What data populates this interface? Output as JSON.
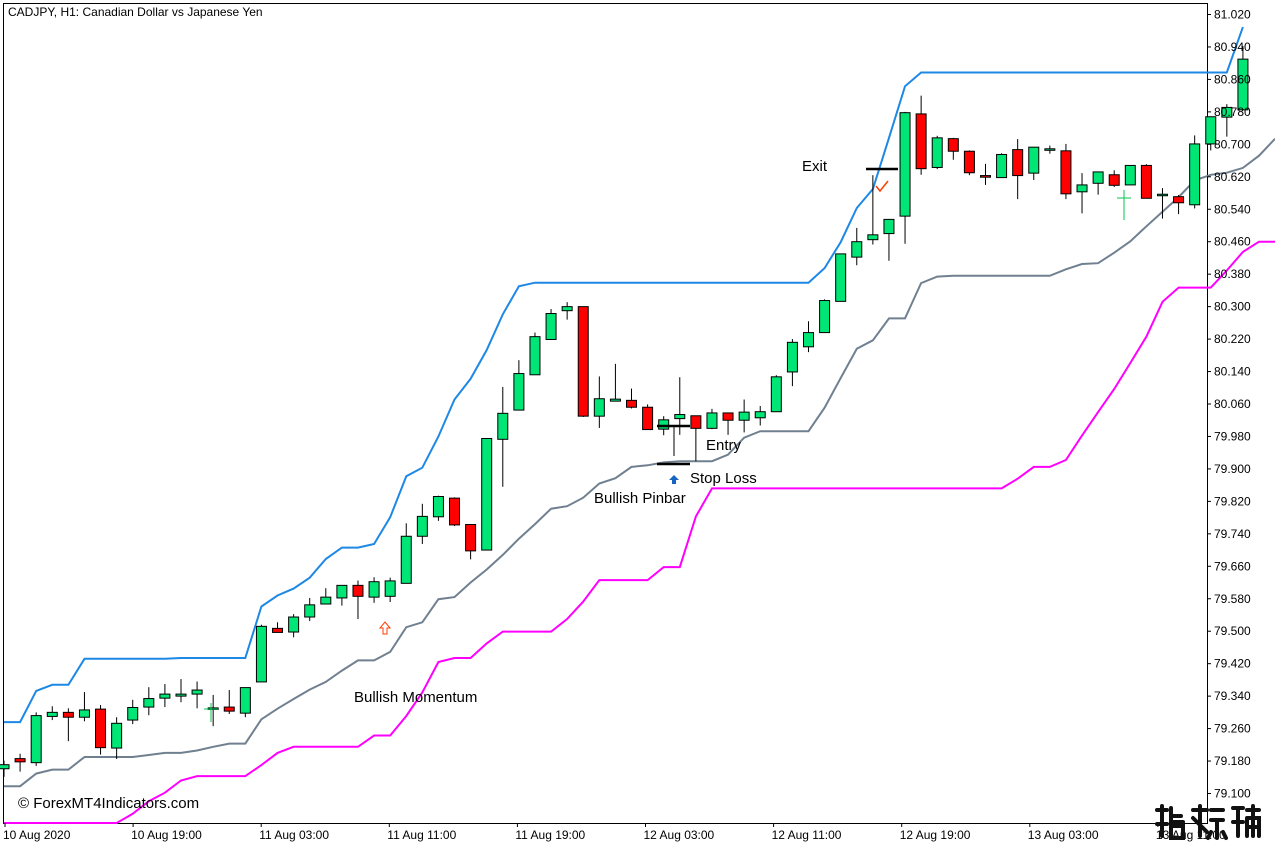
{
  "header": {
    "symbol_label": "CADJPY, H1:  Canadian Dollar vs Japanese Yen"
  },
  "watermark": {
    "text": "© ForexMT4Indicators.com",
    "logo_text": "指标铺"
  },
  "annotations": {
    "exit": "Exit",
    "entry": "Entry",
    "stop_loss": "Stop Loss",
    "bullish_pinbar": "Bullish Pinbar",
    "bullish_momentum": "Bullish Momentum"
  },
  "colors": {
    "bull_candle": "#00e676",
    "bear_candle": "#ff0000",
    "upper_band": "#1e88e5",
    "middle_band": "#708090",
    "lower_band": "#ff00ff",
    "grid_text": "#000000"
  },
  "chart_data": {
    "type": "candlestick",
    "title": "CADJPY, H1:  Canadian Dollar vs Japanese Yen",
    "ylim": [
      79.05,
      81.05
    ],
    "y_ticks": [
      "81.020",
      "80.940",
      "80.860",
      "80.780",
      "80.700",
      "80.620",
      "80.540",
      "80.460",
      "80.380",
      "80.300",
      "80.220",
      "80.140",
      "80.060",
      "79.980",
      "79.900",
      "79.820",
      "79.740",
      "79.660",
      "79.580",
      "79.500",
      "79.420",
      "79.340",
      "79.260",
      "79.180",
      "79.100"
    ],
    "x_ticks": [
      "10 Aug 2020",
      "10 Aug 19:00",
      "11 Aug 03:00",
      "11 Aug 11:00",
      "11 Aug 19:00",
      "12 Aug 03:00",
      "12 Aug 11:00",
      "12 Aug 19:00",
      "13 Aug 03:00",
      "13 Aug 11:00"
    ],
    "grid": false,
    "candles": [
      {
        "o": 79.161,
        "h": 79.181,
        "l": 79.141,
        "c": 79.171
      },
      {
        "o": 79.186,
        "h": 79.198,
        "l": 79.154,
        "c": 79.178
      },
      {
        "o": 79.176,
        "h": 79.3,
        "l": 79.168,
        "c": 79.292
      },
      {
        "o": 79.29,
        "h": 79.315,
        "l": 79.281,
        "c": 79.3
      },
      {
        "o": 79.3,
        "h": 79.31,
        "l": 79.229,
        "c": 79.288
      },
      {
        "o": 79.288,
        "h": 79.35,
        "l": 79.278,
        "c": 79.306
      },
      {
        "o": 79.308,
        "h": 79.318,
        "l": 79.196,
        "c": 79.213
      },
      {
        "o": 79.212,
        "h": 79.288,
        "l": 79.185,
        "c": 79.273
      },
      {
        "o": 79.281,
        "h": 79.331,
        "l": 79.271,
        "c": 79.312
      },
      {
        "o": 79.313,
        "h": 79.362,
        "l": 79.293,
        "c": 79.334
      },
      {
        "o": 79.335,
        "h": 79.37,
        "l": 79.313,
        "c": 79.345
      },
      {
        "o": 79.34,
        "h": 79.382,
        "l": 79.325,
        "c": 79.345
      },
      {
        "o": 79.345,
        "h": 79.376,
        "l": 79.31,
        "c": 79.355
      },
      {
        "o": 79.311,
        "h": 79.343,
        "l": 79.266,
        "c": 79.311
      },
      {
        "o": 79.313,
        "h": 79.355,
        "l": 79.296,
        "c": 79.303
      },
      {
        "o": 79.298,
        "h": 79.361,
        "l": 79.288,
        "c": 79.361
      },
      {
        "o": 79.375,
        "h": 79.516,
        "l": 79.375,
        "c": 79.512
      },
      {
        "o": 79.507,
        "h": 79.522,
        "l": 79.497,
        "c": 79.497
      },
      {
        "o": 79.498,
        "h": 79.542,
        "l": 79.485,
        "c": 79.535
      },
      {
        "o": 79.535,
        "h": 79.582,
        "l": 79.525,
        "c": 79.565
      },
      {
        "o": 79.567,
        "h": 79.606,
        "l": 79.567,
        "c": 79.584
      },
      {
        "o": 79.582,
        "h": 79.613,
        "l": 79.563,
        "c": 79.613
      },
      {
        "o": 79.613,
        "h": 79.625,
        "l": 79.53,
        "c": 79.586
      },
      {
        "o": 79.584,
        "h": 79.633,
        "l": 79.57,
        "c": 79.622
      },
      {
        "o": 79.586,
        "h": 79.632,
        "l": 79.572,
        "c": 79.624
      },
      {
        "o": 79.618,
        "h": 79.766,
        "l": 79.618,
        "c": 79.734
      },
      {
        "o": 79.734,
        "h": 79.814,
        "l": 79.715,
        "c": 79.783
      },
      {
        "o": 79.782,
        "h": 79.834,
        "l": 79.772,
        "c": 79.832
      },
      {
        "o": 79.828,
        "h": 79.83,
        "l": 79.759,
        "c": 79.762
      },
      {
        "o": 79.763,
        "h": 79.761,
        "l": 79.677,
        "c": 79.698
      },
      {
        "o": 79.7,
        "h": 79.975,
        "l": 79.7,
        "c": 79.975
      },
      {
        "o": 79.973,
        "h": 80.102,
        "l": 79.856,
        "c": 80.037
      },
      {
        "o": 80.045,
        "h": 80.168,
        "l": 80.045,
        "c": 80.135
      },
      {
        "o": 80.132,
        "h": 80.236,
        "l": 80.132,
        "c": 80.226
      },
      {
        "o": 80.219,
        "h": 80.294,
        "l": 80.219,
        "c": 80.283
      },
      {
        "o": 80.29,
        "h": 80.311,
        "l": 80.268,
        "c": 80.3
      },
      {
        "o": 80.3,
        "h": 80.3,
        "l": 80.028,
        "c": 80.03
      },
      {
        "o": 80.03,
        "h": 80.128,
        "l": 80.001,
        "c": 80.073
      },
      {
        "o": 80.067,
        "h": 80.159,
        "l": 80.067,
        "c": 80.072
      },
      {
        "o": 80.069,
        "h": 80.098,
        "l": 80.049,
        "c": 80.052
      },
      {
        "o": 80.052,
        "h": 80.059,
        "l": 79.996,
        "c": 79.997
      },
      {
        "o": 79.998,
        "h": 80.03,
        "l": 79.983,
        "c": 80.021
      },
      {
        "o": 80.024,
        "h": 80.126,
        "l": 79.984,
        "c": 80.034
      },
      {
        "o": 80.031,
        "h": 80.031,
        "l": 79.919,
        "c": 80.0
      },
      {
        "o": 80.0,
        "h": 80.048,
        "l": 79.998,
        "c": 80.038
      },
      {
        "o": 80.038,
        "h": 80.039,
        "l": 79.984,
        "c": 80.02
      },
      {
        "o": 80.02,
        "h": 80.071,
        "l": 79.99,
        "c": 80.04
      },
      {
        "o": 80.026,
        "h": 80.055,
        "l": 80.007,
        "c": 80.041
      },
      {
        "o": 80.041,
        "h": 80.131,
        "l": 80.041,
        "c": 80.127
      },
      {
        "o": 80.139,
        "h": 80.22,
        "l": 80.104,
        "c": 80.212
      },
      {
        "o": 80.201,
        "h": 80.264,
        "l": 80.188,
        "c": 80.236
      },
      {
        "o": 80.236,
        "h": 80.318,
        "l": 80.236,
        "c": 80.315
      },
      {
        "o": 80.313,
        "h": 80.416,
        "l": 80.313,
        "c": 80.43
      },
      {
        "o": 80.422,
        "h": 80.494,
        "l": 80.402,
        "c": 80.46
      },
      {
        "o": 80.465,
        "h": 80.624,
        "l": 80.453,
        "c": 80.477
      },
      {
        "o": 80.48,
        "h": 80.501,
        "l": 80.413,
        "c": 80.515
      },
      {
        "o": 80.523,
        "h": 80.78,
        "l": 80.455,
        "c": 80.778
      },
      {
        "o": 80.775,
        "h": 80.82,
        "l": 80.625,
        "c": 80.64
      },
      {
        "o": 80.643,
        "h": 80.721,
        "l": 80.639,
        "c": 80.716
      },
      {
        "o": 80.714,
        "h": 80.716,
        "l": 80.662,
        "c": 80.683
      },
      {
        "o": 80.683,
        "h": 80.685,
        "l": 80.624,
        "c": 80.63
      },
      {
        "o": 80.623,
        "h": 80.652,
        "l": 80.6,
        "c": 80.619
      },
      {
        "o": 80.618,
        "h": 80.678,
        "l": 80.617,
        "c": 80.675
      },
      {
        "o": 80.687,
        "h": 80.713,
        "l": 80.565,
        "c": 80.623
      },
      {
        "o": 80.629,
        "h": 80.693,
        "l": 80.612,
        "c": 80.693
      },
      {
        "o": 80.689,
        "h": 80.697,
        "l": 80.677,
        "c": 80.689
      },
      {
        "o": 80.684,
        "h": 80.701,
        "l": 80.565,
        "c": 80.578
      },
      {
        "o": 80.583,
        "h": 80.629,
        "l": 80.53,
        "c": 80.6
      },
      {
        "o": 80.604,
        "h": 80.63,
        "l": 80.576,
        "c": 80.632
      },
      {
        "o": 80.625,
        "h": 80.636,
        "l": 80.595,
        "c": 80.599
      },
      {
        "o": 80.6,
        "h": 80.648,
        "l": 80.6,
        "c": 80.648
      },
      {
        "o": 80.648,
        "h": 80.651,
        "l": 80.57,
        "c": 80.567
      },
      {
        "o": 80.575,
        "h": 80.592,
        "l": 80.517,
        "c": 80.577
      },
      {
        "o": 80.571,
        "h": 80.575,
        "l": 80.528,
        "c": 80.556
      },
      {
        "o": 80.551,
        "h": 80.722,
        "l": 80.542,
        "c": 80.701
      },
      {
        "o": 80.701,
        "h": 80.761,
        "l": 80.685,
        "c": 80.768
      },
      {
        "o": 80.767,
        "h": 80.799,
        "l": 80.719,
        "c": 80.791
      },
      {
        "o": 80.785,
        "h": 80.942,
        "l": 80.785,
        "c": 80.91
      }
    ],
    "series": [
      {
        "name": "upper",
        "values": [
          79.276,
          79.276,
          79.353,
          79.368,
          79.368,
          79.432,
          79.432,
          79.432,
          79.432,
          79.432,
          79.432,
          79.434,
          79.434,
          79.434,
          79.434,
          79.434,
          79.561,
          79.588,
          79.605,
          79.632,
          79.678,
          79.706,
          79.706,
          79.715,
          79.781,
          79.882,
          79.903,
          79.98,
          80.071,
          80.122,
          80.193,
          80.281,
          80.35,
          80.359,
          80.359,
          80.359,
          80.359,
          80.359,
          80.359,
          80.359,
          80.359,
          80.359,
          80.359,
          80.359,
          80.359,
          80.359,
          80.359,
          80.359,
          80.359,
          80.359,
          80.359,
          80.395,
          80.459,
          80.543,
          80.59,
          80.716,
          80.843,
          80.877,
          80.877,
          80.877,
          80.877,
          80.877,
          80.877,
          80.877,
          80.877,
          80.877,
          80.877,
          80.877,
          80.877,
          80.877,
          80.877,
          80.877,
          80.877,
          80.877,
          80.877,
          80.877,
          80.877,
          80.989
        ]
      },
      {
        "name": "middle",
        "values": [
          79.118,
          79.118,
          79.149,
          79.159,
          79.159,
          79.19,
          79.19,
          79.19,
          79.19,
          79.195,
          79.2,
          79.2,
          79.206,
          79.215,
          79.223,
          79.223,
          79.283,
          79.309,
          79.333,
          79.356,
          79.375,
          79.403,
          79.428,
          79.428,
          79.449,
          79.51,
          79.522,
          79.579,
          79.584,
          79.62,
          79.652,
          79.688,
          79.728,
          79.764,
          79.802,
          79.808,
          79.829,
          79.864,
          79.877,
          79.905,
          79.909,
          79.916,
          79.919,
          79.919,
          79.919,
          79.935,
          79.977,
          79.993,
          79.993,
          79.993,
          79.993,
          80.051,
          80.124,
          80.196,
          80.217,
          80.271,
          80.271,
          80.358,
          80.374,
          80.376,
          80.376,
          80.376,
          80.376,
          80.376,
          80.376,
          80.376,
          80.392,
          80.405,
          80.407,
          80.433,
          80.461,
          80.498,
          80.534,
          80.57,
          80.611,
          80.625,
          80.63,
          80.642,
          80.672,
          80.714
        ]
      },
      {
        "name": "lower",
        "values": [
          78.952,
          78.952,
          78.955,
          78.959,
          78.978,
          78.99,
          79.015,
          79.021,
          79.05,
          79.081,
          79.102,
          79.132,
          79.143,
          79.143,
          79.143,
          79.143,
          79.17,
          79.2,
          79.215,
          79.215,
          79.215,
          79.215,
          79.215,
          79.243,
          79.243,
          79.291,
          79.349,
          79.424,
          79.434,
          79.434,
          79.47,
          79.499,
          79.499,
          79.499,
          79.499,
          79.53,
          79.573,
          79.626,
          79.626,
          79.626,
          79.626,
          79.658,
          79.658,
          79.783,
          79.852,
          79.852,
          79.852,
          79.852,
          79.852,
          79.852,
          79.852,
          79.852,
          79.852,
          79.852,
          79.852,
          79.852,
          79.852,
          79.852,
          79.852,
          79.852,
          79.852,
          79.852,
          79.852,
          79.876,
          79.905,
          79.905,
          79.922,
          79.982,
          80.04,
          80.097,
          80.161,
          80.226,
          80.312,
          80.347,
          80.347,
          80.347,
          80.389,
          80.435,
          80.46,
          80.46
        ]
      }
    ]
  }
}
